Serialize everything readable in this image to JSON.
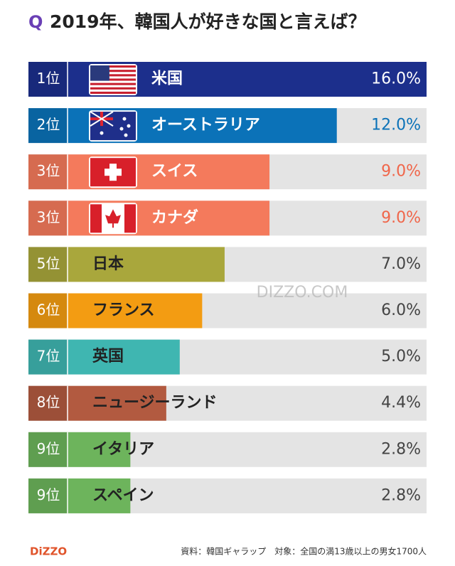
{
  "chart_data": {
    "type": "bar",
    "orientation": "horizontal",
    "title_prefix": "Q",
    "title": "2019年、韓国人が好きな国と言えば？",
    "ranks": [
      "1位",
      "2位",
      "3位",
      "3位",
      "5位",
      "6位",
      "7位",
      "8位",
      "9位",
      "9位"
    ],
    "categories": [
      "米国",
      "オーストラリア",
      "スイス",
      "カナダ",
      "日本",
      "フランス",
      "英国",
      "ニュージーランド",
      "イタリア",
      "スペイン"
    ],
    "values": [
      16.0,
      12.0,
      9.0,
      9.0,
      7.0,
      6.0,
      5.0,
      4.4,
      2.8,
      2.8
    ],
    "value_labels": [
      "16.0%",
      "12.0%",
      "9.0%",
      "9.0%",
      "7.0%",
      "6.0%",
      "5.0%",
      "4.4%",
      "2.8%",
      "2.8%"
    ],
    "colors": [
      "#1c2f8c",
      "#0b72b8",
      "#f47a5c",
      "#f47a5c",
      "#a9a73c",
      "#f39c12",
      "#3fb6b1",
      "#b25a40",
      "#6db45c",
      "#6db45c"
    ],
    "value_label_colors": [
      "#1c2f8c",
      "#0b72b8",
      "#f0664a",
      "#f0664a",
      "#444444",
      "#444444",
      "#444444",
      "#444444",
      "#444444",
      "#444444"
    ],
    "xlim": [
      0,
      16
    ],
    "watermark": "DIZZO.COM",
    "logo": "DiZZO",
    "source": "資料：韓国ギャラップ　対象：全国の満13歳以上の男女1700人"
  }
}
